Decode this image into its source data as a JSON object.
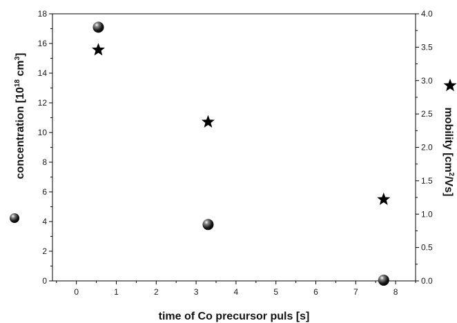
{
  "chart_data": {
    "type": "scatter",
    "xlabel": "time of Co precursor puls [s]",
    "x_ticks": [
      "0",
      "1",
      "2",
      "3",
      "4",
      "5",
      "6",
      "7",
      "8"
    ],
    "xlim": [
      -0.6,
      8.5
    ],
    "y_left": {
      "label_prefix": "concentration [10",
      "label_sup1": "18",
      "label_mid": " cm",
      "label_sup2": "3",
      "label_suffix": "]",
      "ylim": [
        0,
        18
      ],
      "ticks": [
        "0",
        "2",
        "4",
        "6",
        "8",
        "10",
        "12",
        "14",
        "16",
        "18"
      ]
    },
    "y_right": {
      "label_prefix": "mobility [cm",
      "label_sup": "2",
      "label_suffix": "/Vs]",
      "ylim": [
        0,
        4.0
      ],
      "ticks": [
        "0.0",
        "0.5",
        "1.0",
        "1.5",
        "2.0",
        "2.5",
        "3.0",
        "3.5",
        "4.0"
      ]
    },
    "series": [
      {
        "marker": "sphere",
        "axis": "left",
        "x": [
          0.55,
          3.3,
          7.7
        ],
        "y": [
          17.1,
          3.8,
          0.05
        ]
      },
      {
        "marker": "star",
        "axis": "right",
        "x": [
          0.55,
          3.3,
          7.7
        ],
        "y": [
          3.46,
          2.38,
          1.22
        ]
      }
    ],
    "grid": false
  }
}
